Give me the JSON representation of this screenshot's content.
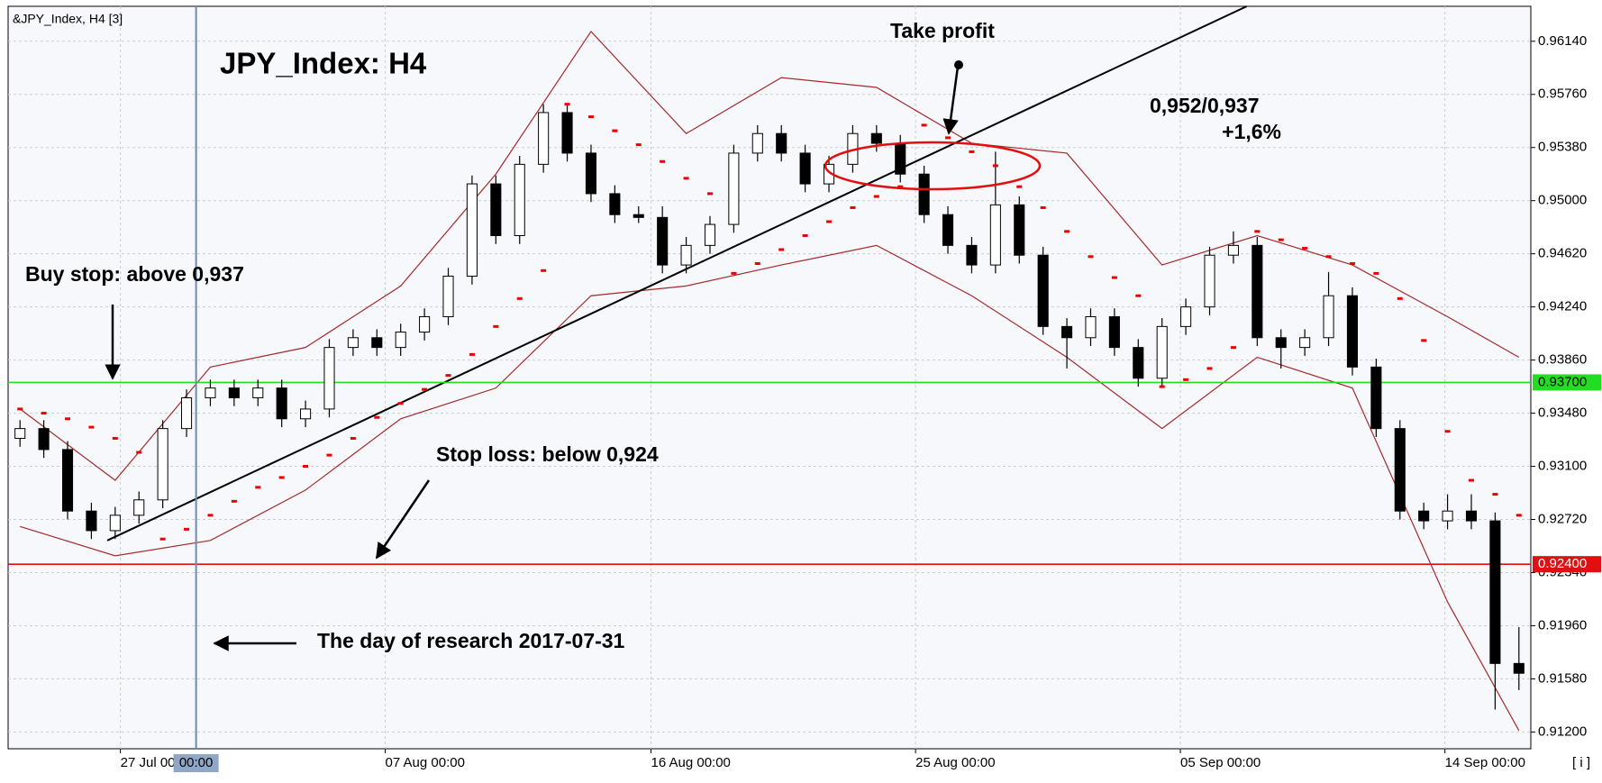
{
  "chart_data": {
    "type": "candlestick",
    "header": "&JPY_Index, H4 [3]",
    "title": "JPY_Index: H4",
    "annotations": {
      "take_profit": "Take profit",
      "target": "0,952/0,937",
      "change": "+1,6%",
      "buy_stop": "Buy stop: above  0,937",
      "stop_loss": "Stop loss: below 0,924",
      "research_day": "The day of research 2017-07-31"
    },
    "corner_label": "[ i ]",
    "cursor_label": "00:00",
    "research_line_x": 7.9,
    "xlim": [
      0,
      64
    ],
    "xticks": [
      {
        "value": 4.72,
        "label": "27 Jul 00:00"
      },
      {
        "value": 15.85,
        "label": "07 Aug 00:00"
      },
      {
        "value": 27.02,
        "label": "16 Aug 00:00"
      },
      {
        "value": 38.14,
        "label": "25 Aug 00:00"
      },
      {
        "value": 49.27,
        "label": "05 Sep 00:00"
      },
      {
        "value": 60.39,
        "label": "14 Sep 00:00"
      }
    ],
    "ylim": [
      0.9108,
      0.9639
    ],
    "yticks": [
      {
        "value": 0.9614,
        "label": "0.96140"
      },
      {
        "value": 0.9576,
        "label": "0.95760"
      },
      {
        "value": 0.9538,
        "label": "0.95380"
      },
      {
        "value": 0.95,
        "label": "0.95000"
      },
      {
        "value": 0.9462,
        "label": "0.94620"
      },
      {
        "value": 0.9424,
        "label": "0.94240"
      },
      {
        "value": 0.9386,
        "label": "0.93860"
      },
      {
        "value": 0.9348,
        "label": "0.93480"
      },
      {
        "value": 0.931,
        "label": "0.93100"
      },
      {
        "value": 0.9272,
        "label": "0.92720"
      },
      {
        "value": 0.9234,
        "label": "0.92340"
      },
      {
        "value": 0.9196,
        "label": "0.91960"
      },
      {
        "value": 0.9158,
        "label": "0.91580"
      },
      {
        "value": 0.912,
        "label": "0.91200"
      }
    ],
    "grid": true,
    "levels": [
      {
        "value": 0.937,
        "label": "0.93700",
        "color": "#22dd22"
      },
      {
        "value": 0.924,
        "label": "0.92400",
        "color": "#e01010"
      }
    ],
    "trendline": {
      "x": [
        4.17,
        52.06
      ],
      "y": [
        0.9257,
        0.9639
      ],
      "color": "#000000"
    },
    "ohlc": [
      [
        0.933,
        0.9343,
        0.9324,
        0.9337
      ],
      [
        0.9337,
        0.9343,
        0.9316,
        0.9322
      ],
      [
        0.9322,
        0.9328,
        0.9272,
        0.9278
      ],
      [
        0.9278,
        0.9284,
        0.9258,
        0.9264
      ],
      [
        0.9264,
        0.9281,
        0.9258,
        0.9275
      ],
      [
        0.9275,
        0.9292,
        0.9269,
        0.9286
      ],
      [
        0.9286,
        0.9343,
        0.928,
        0.9337
      ],
      [
        0.9337,
        0.9365,
        0.9331,
        0.9359
      ],
      [
        0.9359,
        0.9372,
        0.9353,
        0.9366
      ],
      [
        0.9366,
        0.9372,
        0.9353,
        0.9359
      ],
      [
        0.9359,
        0.9372,
        0.9353,
        0.9366
      ],
      [
        0.9366,
        0.9372,
        0.9338,
        0.9344
      ],
      [
        0.9344,
        0.9357,
        0.9338,
        0.9351
      ],
      [
        0.9351,
        0.9401,
        0.9345,
        0.9395
      ],
      [
        0.9395,
        0.9408,
        0.9389,
        0.9402
      ],
      [
        0.9402,
        0.9408,
        0.9389,
        0.9395
      ],
      [
        0.9395,
        0.9412,
        0.9389,
        0.9406
      ],
      [
        0.9406,
        0.9423,
        0.94,
        0.9417
      ],
      [
        0.9417,
        0.9452,
        0.9411,
        0.9446
      ],
      [
        0.9446,
        0.9518,
        0.944,
        0.9512
      ],
      [
        0.9512,
        0.9518,
        0.9469,
        0.9475
      ],
      [
        0.9475,
        0.9532,
        0.9469,
        0.9526
      ],
      [
        0.9526,
        0.9569,
        0.952,
        0.9563
      ],
      [
        0.9563,
        0.9569,
        0.9528,
        0.9534
      ],
      [
        0.9534,
        0.954,
        0.9499,
        0.9505
      ],
      [
        0.9505,
        0.9511,
        0.9484,
        0.949
      ],
      [
        0.949,
        0.9496,
        0.9484,
        0.9488
      ],
      [
        0.9488,
        0.9496,
        0.9448,
        0.9454
      ],
      [
        0.9454,
        0.9474,
        0.9448,
        0.9468
      ],
      [
        0.9468,
        0.9489,
        0.9462,
        0.9483
      ],
      [
        0.9483,
        0.954,
        0.9477,
        0.9534
      ],
      [
        0.9534,
        0.9554,
        0.9528,
        0.9548
      ],
      [
        0.9548,
        0.9554,
        0.9528,
        0.9534
      ],
      [
        0.9534,
        0.954,
        0.9506,
        0.9512
      ],
      [
        0.9512,
        0.9532,
        0.9506,
        0.9526
      ],
      [
        0.9526,
        0.9554,
        0.952,
        0.9548
      ],
      [
        0.9548,
        0.9554,
        0.9535,
        0.9541
      ],
      [
        0.9541,
        0.9547,
        0.9513,
        0.9519
      ],
      [
        0.9519,
        0.9525,
        0.9484,
        0.949
      ],
      [
        0.949,
        0.9496,
        0.9462,
        0.9468
      ],
      [
        0.9468,
        0.9474,
        0.9448,
        0.9454
      ],
      [
        0.9454,
        0.9535,
        0.9448,
        0.9497
      ],
      [
        0.9497,
        0.9503,
        0.9455,
        0.9461
      ],
      [
        0.9461,
        0.9467,
        0.9404,
        0.941
      ],
      [
        0.941,
        0.9416,
        0.938,
        0.9402
      ],
      [
        0.9402,
        0.9423,
        0.9396,
        0.9417
      ],
      [
        0.9417,
        0.9423,
        0.9389,
        0.9395
      ],
      [
        0.9395,
        0.9401,
        0.9367,
        0.9373
      ],
      [
        0.9373,
        0.9416,
        0.9367,
        0.941
      ],
      [
        0.941,
        0.943,
        0.9404,
        0.9424
      ],
      [
        0.9424,
        0.9467,
        0.9418,
        0.9461
      ],
      [
        0.9461,
        0.9478,
        0.9455,
        0.9468
      ],
      [
        0.9468,
        0.9474,
        0.9396,
        0.9402
      ],
      [
        0.9402,
        0.9408,
        0.938,
        0.9395
      ],
      [
        0.9395,
        0.9408,
        0.9389,
        0.9402
      ],
      [
        0.9402,
        0.9449,
        0.9396,
        0.9432
      ],
      [
        0.9432,
        0.9438,
        0.9375,
        0.9381
      ],
      [
        0.9381,
        0.9387,
        0.9331,
        0.9337
      ],
      [
        0.9337,
        0.9343,
        0.9272,
        0.9278
      ],
      [
        0.9278,
        0.9284,
        0.9265,
        0.9271
      ],
      [
        0.9271,
        0.929,
        0.9265,
        0.9278
      ],
      [
        0.9278,
        0.929,
        0.9265,
        0.9271
      ],
      [
        0.9271,
        0.9277,
        0.9136,
        0.9169
      ],
      [
        0.9169,
        0.9195,
        0.915,
        0.9162
      ]
    ],
    "bands": {
      "x": [
        0.5,
        4.5,
        8.5,
        12.5,
        16.5,
        20.5,
        24.5,
        28.5,
        32.5,
        36.5,
        40.5,
        44.5,
        48.5,
        52.5,
        56.5,
        60.5,
        63.5
      ],
      "color": "#a52a2a",
      "upper": [
        0.9351,
        0.93,
        0.9381,
        0.9395,
        0.9439,
        0.9519,
        0.9621,
        0.9548,
        0.9588,
        0.9581,
        0.9541,
        0.9534,
        0.9454,
        0.9475,
        0.9454,
        0.9417,
        0.9388
      ],
      "lower": [
        0.9267,
        0.9246,
        0.9257,
        0.9293,
        0.9344,
        0.9366,
        0.9432,
        0.9439,
        0.9454,
        0.9468,
        0.9432,
        0.9388,
        0.9337,
        0.9388,
        0.9366,
        0.9213,
        0.9121
      ]
    },
    "sar": {
      "color": "#ee0000",
      "values": [
        0.9351,
        0.9348,
        0.9344,
        0.9338,
        0.933,
        0.932,
        0.9258,
        0.9265,
        0.9275,
        0.9285,
        0.9295,
        0.9302,
        0.931,
        0.9318,
        0.933,
        0.9345,
        0.9355,
        0.9365,
        0.9375,
        0.939,
        0.941,
        0.943,
        0.945,
        0.9569,
        0.956,
        0.955,
        0.954,
        0.9528,
        0.9516,
        0.9505,
        0.9448,
        0.9455,
        0.9465,
        0.9475,
        0.9485,
        0.9495,
        0.9503,
        0.951,
        0.9554,
        0.9545,
        0.9535,
        0.9525,
        0.951,
        0.9495,
        0.9478,
        0.946,
        0.9445,
        0.9432,
        0.9367,
        0.9372,
        0.938,
        0.9395,
        0.9478,
        0.9472,
        0.9466,
        0.946,
        0.9455,
        0.9448,
        0.943,
        0.94,
        0.9335,
        0.93,
        0.929,
        0.9275
      ]
    }
  }
}
